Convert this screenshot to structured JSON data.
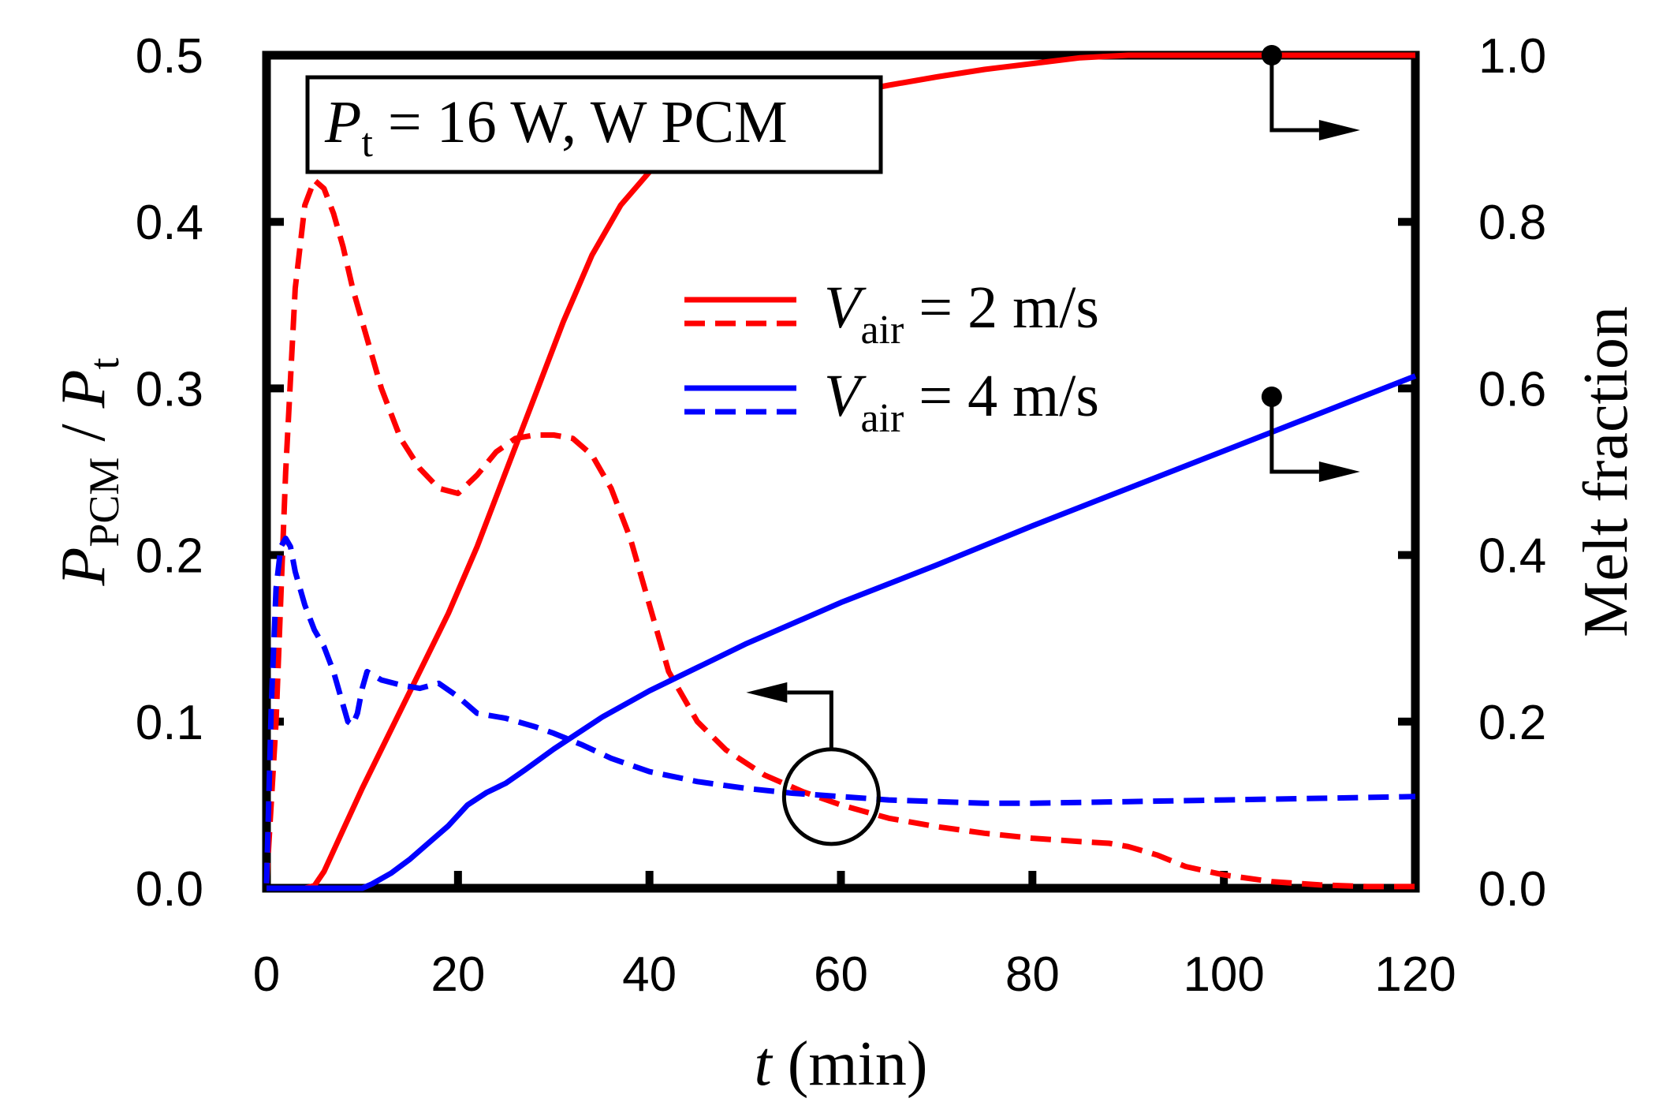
{
  "chart_data": {
    "type": "line",
    "dual_axis": true,
    "annotation_box": {
      "symbol": "P",
      "subscript": "t",
      "rest": " = 16 W, W PCM"
    },
    "x_axis": {
      "label_symbol": "t",
      "label_units": " (min)",
      "range": [
        0,
        120
      ],
      "ticks": [
        0,
        20,
        40,
        60,
        80,
        100,
        120
      ],
      "tick_labels": [
        "0",
        "20",
        "40",
        "60",
        "80",
        "100",
        "120"
      ]
    },
    "y_left": {
      "label_num": "P",
      "label_num_sub": "PCM",
      "label_sep": " / ",
      "label_den": "P",
      "label_den_sub": "t",
      "range": [
        0,
        0.5
      ],
      "ticks": [
        0,
        0.1,
        0.2,
        0.3,
        0.4,
        0.5
      ],
      "tick_labels": [
        "0.0",
        "0.1",
        "0.2",
        "0.3",
        "0.4",
        "0.5"
      ]
    },
    "y_right": {
      "label": "Melt fraction",
      "range": [
        0,
        1.0
      ],
      "ticks": [
        0,
        0.2,
        0.4,
        0.6,
        0.8,
        1.0
      ],
      "tick_labels": [
        "0.0",
        "0.2",
        "0.4",
        "0.6",
        "0.8",
        "1.0"
      ]
    },
    "legend": {
      "position": "upper-center",
      "entries": [
        {
          "symbol": "V",
          "subscript": "air",
          "rest": " = 2 m/s",
          "color": "#ff0000"
        },
        {
          "symbol": "V",
          "subscript": "air",
          "rest": " = 4 m/s",
          "color": "#0000ff"
        }
      ]
    },
    "series": [
      {
        "name": "melt_fraction_2ms",
        "axis": "right",
        "style": "solid",
        "color": "#ff0000",
        "x": [
          0,
          4,
          5,
          6,
          8,
          10,
          13,
          16,
          19,
          22,
          25,
          28,
          31,
          34,
          37,
          40,
          43,
          46,
          50,
          55,
          60,
          65,
          70,
          75,
          80,
          85,
          90,
          95,
          100,
          110,
          120
        ],
        "y": [
          0,
          0,
          0.003,
          0.02,
          0.07,
          0.12,
          0.19,
          0.26,
          0.33,
          0.41,
          0.5,
          0.59,
          0.68,
          0.76,
          0.82,
          0.86,
          0.895,
          0.912,
          0.925,
          0.94,
          0.953,
          0.964,
          0.974,
          0.983,
          0.99,
          0.997,
          1.0,
          1.0,
          1.0,
          1.0,
          1.0
        ]
      },
      {
        "name": "p_ratio_2ms",
        "axis": "left",
        "style": "dashed",
        "color": "#ff0000",
        "x": [
          0,
          1,
          2,
          3,
          4,
          5,
          6,
          7,
          8,
          9,
          10,
          12,
          14,
          16,
          18,
          20,
          22,
          24,
          26,
          28,
          30,
          32,
          34,
          36,
          38,
          40,
          42,
          45,
          48,
          52,
          56,
          60,
          65,
          70,
          75,
          80,
          85,
          88,
          90,
          93,
          96,
          100,
          105,
          110,
          115,
          120
        ],
        "y": [
          0.003,
          0.1,
          0.25,
          0.36,
          0.41,
          0.425,
          0.42,
          0.405,
          0.385,
          0.36,
          0.34,
          0.3,
          0.27,
          0.252,
          0.24,
          0.237,
          0.248,
          0.262,
          0.27,
          0.272,
          0.272,
          0.27,
          0.26,
          0.24,
          0.21,
          0.17,
          0.13,
          0.1,
          0.083,
          0.068,
          0.058,
          0.05,
          0.042,
          0.037,
          0.033,
          0.03,
          0.028,
          0.027,
          0.025,
          0.02,
          0.013,
          0.008,
          0.004,
          0.002,
          0.001,
          0.001
        ]
      },
      {
        "name": "melt_fraction_4ms",
        "axis": "right",
        "style": "solid",
        "color": "#0000ff",
        "x": [
          0,
          10,
          11,
          13,
          15,
          17,
          19,
          21,
          23,
          25,
          27,
          30,
          35,
          40,
          45,
          50,
          55,
          60,
          70,
          80,
          90,
          100,
          110,
          120
        ],
        "y": [
          0,
          0,
          0.005,
          0.018,
          0.035,
          0.055,
          0.075,
          0.1,
          0.115,
          0.126,
          0.142,
          0.167,
          0.205,
          0.237,
          0.265,
          0.293,
          0.318,
          0.343,
          0.388,
          0.435,
          0.48,
          0.525,
          0.57,
          0.615
        ]
      },
      {
        "name": "p_ratio_4ms",
        "axis": "left",
        "style": "dashed",
        "color": "#0000ff",
        "x": [
          0,
          0.5,
          1,
          1.5,
          2,
          2.5,
          3,
          4,
          5,
          6,
          7,
          8,
          8.5,
          9,
          9.5,
          10,
          10.5,
          12,
          14,
          16,
          18,
          20,
          22,
          25,
          28,
          30,
          33,
          36,
          40,
          45,
          50,
          55,
          60,
          65,
          70,
          75,
          80,
          90,
          100,
          110,
          120
        ],
        "y": [
          0.003,
          0.11,
          0.18,
          0.205,
          0.21,
          0.205,
          0.19,
          0.17,
          0.155,
          0.145,
          0.13,
          0.11,
          0.1,
          0.098,
          0.105,
          0.12,
          0.13,
          0.125,
          0.122,
          0.12,
          0.123,
          0.115,
          0.105,
          0.102,
          0.097,
          0.093,
          0.086,
          0.078,
          0.07,
          0.064,
          0.06,
          0.057,
          0.055,
          0.053,
          0.052,
          0.051,
          0.051,
          0.052,
          0.053,
          0.054,
          0.055
        ]
      }
    ],
    "markers": [
      {
        "x": 105,
        "axis": "right",
        "y": 1.0,
        "points_to": "right-axis"
      },
      {
        "x": 105,
        "axis": "right",
        "y": 0.59,
        "points_to": "right-axis"
      },
      {
        "x": 59,
        "axis": "left",
        "y": 0.055,
        "points_to": "left-axis",
        "shape": "circle"
      }
    ]
  }
}
